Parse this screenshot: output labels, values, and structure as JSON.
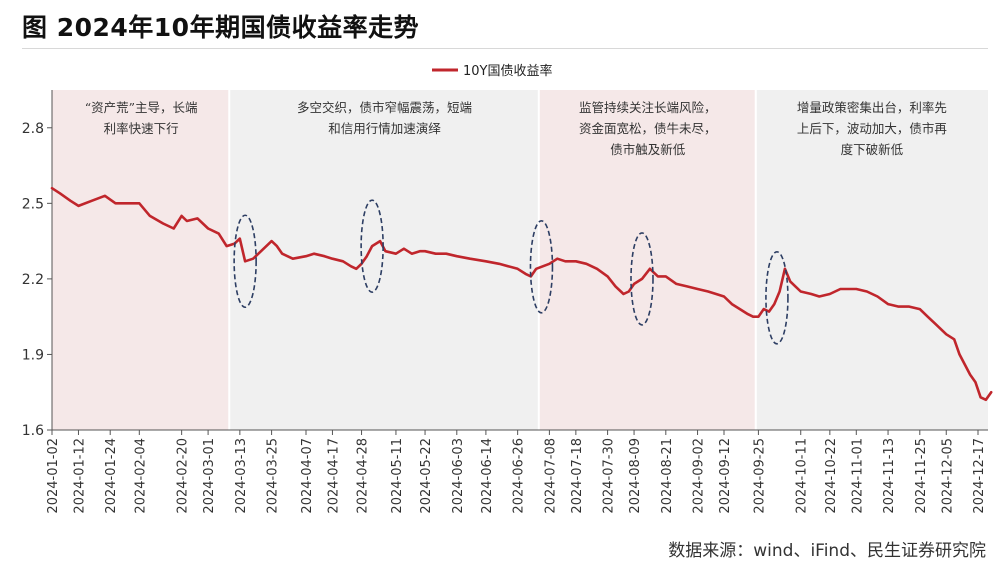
{
  "figure": {
    "title": "图  2024年10年期国债收益率走势",
    "source": "数据来源：wind、iFind、民生证券研究院"
  },
  "chart_data": {
    "type": "line",
    "legend": "10Y国债收益率",
    "legend_position": "top-center",
    "ylim": [
      1.6,
      2.95
    ],
    "yticks": [
      "1.6",
      "1.9",
      "2.2",
      "2.5",
      "2.8"
    ],
    "xticks": [
      "2024-01-02",
      "2024-01-12",
      "2024-01-24",
      "2024-02-04",
      "2024-02-20",
      "2024-03-01",
      "2024-03-13",
      "2024-03-25",
      "2024-04-07",
      "2024-04-17",
      "2024-04-28",
      "2024-05-11",
      "2024-05-22",
      "2024-06-03",
      "2024-06-14",
      "2024-06-26",
      "2024-07-08",
      "2024-07-18",
      "2024-07-30",
      "2024-08-09",
      "2024-08-21",
      "2024-09-02",
      "2024-09-12",
      "2024-09-25",
      "2024-10-11",
      "2024-10-22",
      "2024-11-01",
      "2024-11-13",
      "2024-11-25",
      "2024-12-05",
      "2024-12-17"
    ],
    "series": [
      {
        "name": "10Y国债收益率",
        "color": "#c0262c",
        "points": [
          [
            "2024-01-02",
            2.56
          ],
          [
            "2024-01-05",
            2.54
          ],
          [
            "2024-01-09",
            2.51
          ],
          [
            "2024-01-12",
            2.49
          ],
          [
            "2024-01-17",
            2.51
          ],
          [
            "2024-01-22",
            2.53
          ],
          [
            "2024-01-26",
            2.5
          ],
          [
            "2024-01-31",
            2.5
          ],
          [
            "2024-02-04",
            2.5
          ],
          [
            "2024-02-08",
            2.45
          ],
          [
            "2024-02-13",
            2.42
          ],
          [
            "2024-02-17",
            2.4
          ],
          [
            "2024-02-20",
            2.45
          ],
          [
            "2024-02-22",
            2.43
          ],
          [
            "2024-02-26",
            2.44
          ],
          [
            "2024-03-01",
            2.4
          ],
          [
            "2024-03-05",
            2.38
          ],
          [
            "2024-03-08",
            2.33
          ],
          [
            "2024-03-11",
            2.34
          ],
          [
            "2024-03-13",
            2.36
          ],
          [
            "2024-03-15",
            2.27
          ],
          [
            "2024-03-18",
            2.28
          ],
          [
            "2024-03-21",
            2.31
          ],
          [
            "2024-03-25",
            2.35
          ],
          [
            "2024-03-27",
            2.33
          ],
          [
            "2024-03-29",
            2.3
          ],
          [
            "2024-04-02",
            2.28
          ],
          [
            "2024-04-07",
            2.29
          ],
          [
            "2024-04-10",
            2.3
          ],
          [
            "2024-04-14",
            2.29
          ],
          [
            "2024-04-17",
            2.28
          ],
          [
            "2024-04-21",
            2.27
          ],
          [
            "2024-04-24",
            2.25
          ],
          [
            "2024-04-26",
            2.24
          ],
          [
            "2024-04-28",
            2.26
          ],
          [
            "2024-04-30",
            2.29
          ],
          [
            "2024-05-02",
            2.33
          ],
          [
            "2024-05-05",
            2.35
          ],
          [
            "2024-05-07",
            2.31
          ],
          [
            "2024-05-11",
            2.3
          ],
          [
            "2024-05-14",
            2.32
          ],
          [
            "2024-05-17",
            2.3
          ],
          [
            "2024-05-20",
            2.31
          ],
          [
            "2024-05-22",
            2.31
          ],
          [
            "2024-05-26",
            2.3
          ],
          [
            "2024-05-30",
            2.3
          ],
          [
            "2024-06-03",
            2.29
          ],
          [
            "2024-06-08",
            2.28
          ],
          [
            "2024-06-14",
            2.27
          ],
          [
            "2024-06-19",
            2.26
          ],
          [
            "2024-06-26",
            2.24
          ],
          [
            "2024-06-29",
            2.22
          ],
          [
            "2024-07-01",
            2.21
          ],
          [
            "2024-07-03",
            2.24
          ],
          [
            "2024-07-08",
            2.26
          ],
          [
            "2024-07-11",
            2.28
          ],
          [
            "2024-07-14",
            2.27
          ],
          [
            "2024-07-18",
            2.27
          ],
          [
            "2024-07-22",
            2.26
          ],
          [
            "2024-07-26",
            2.24
          ],
          [
            "2024-07-30",
            2.21
          ],
          [
            "2024-08-02",
            2.17
          ],
          [
            "2024-08-05",
            2.14
          ],
          [
            "2024-08-07",
            2.15
          ],
          [
            "2024-08-09",
            2.18
          ],
          [
            "2024-08-12",
            2.2
          ],
          [
            "2024-08-15",
            2.24
          ],
          [
            "2024-08-18",
            2.21
          ],
          [
            "2024-08-21",
            2.21
          ],
          [
            "2024-08-25",
            2.18
          ],
          [
            "2024-08-29",
            2.17
          ],
          [
            "2024-09-02",
            2.16
          ],
          [
            "2024-09-06",
            2.15
          ],
          [
            "2024-09-09",
            2.14
          ],
          [
            "2024-09-12",
            2.13
          ],
          [
            "2024-09-15",
            2.1
          ],
          [
            "2024-09-18",
            2.08
          ],
          [
            "2024-09-21",
            2.06
          ],
          [
            "2024-09-23",
            2.05
          ],
          [
            "2024-09-25",
            2.05
          ],
          [
            "2024-09-27",
            2.08
          ],
          [
            "2024-09-29",
            2.07
          ],
          [
            "2024-10-01",
            2.1
          ],
          [
            "2024-10-03",
            2.15
          ],
          [
            "2024-10-05",
            2.24
          ],
          [
            "2024-10-07",
            2.19
          ],
          [
            "2024-10-09",
            2.17
          ],
          [
            "2024-10-11",
            2.15
          ],
          [
            "2024-10-15",
            2.14
          ],
          [
            "2024-10-18",
            2.13
          ],
          [
            "2024-10-22",
            2.14
          ],
          [
            "2024-10-26",
            2.16
          ],
          [
            "2024-11-01",
            2.16
          ],
          [
            "2024-11-05",
            2.15
          ],
          [
            "2024-11-09",
            2.13
          ],
          [
            "2024-11-13",
            2.1
          ],
          [
            "2024-11-17",
            2.09
          ],
          [
            "2024-11-21",
            2.09
          ],
          [
            "2024-11-25",
            2.08
          ],
          [
            "2024-11-28",
            2.05
          ],
          [
            "2024-12-01",
            2.02
          ],
          [
            "2024-12-05",
            1.98
          ],
          [
            "2024-12-08",
            1.96
          ],
          [
            "2024-12-10",
            1.9
          ],
          [
            "2024-12-12",
            1.86
          ],
          [
            "2024-12-14",
            1.82
          ],
          [
            "2024-12-16",
            1.79
          ],
          [
            "2024-12-18",
            1.73
          ],
          [
            "2024-12-20",
            1.72
          ],
          [
            "2024-12-22",
            1.75
          ]
        ]
      }
    ],
    "phases": [
      {
        "start": "2024-01-02",
        "end": "2024-03-09",
        "shade": "#f5e8e8",
        "annotation": [
          "“资产荒”主导，长端",
          "利率快速下行"
        ]
      },
      {
        "start": "2024-03-09",
        "end": "2024-07-04",
        "shade": "#f0f0f0",
        "annotation": [
          "多空交织，债市窄幅震荡，短端",
          "和信用行情加速演绎"
        ]
      },
      {
        "start": "2024-07-04",
        "end": "2024-09-24",
        "shade": "#f5e8e8",
        "annotation": [
          "监管持续关注长端风险，",
          "资金面宽松，债牛未尽，",
          "债市触及新低"
        ]
      },
      {
        "start": "2024-09-24",
        "end": "2024-12-22",
        "shade": "#f0f0f0",
        "annotation": [
          "增量政策密集出台，利率先",
          "上后下，波动加大，债市再",
          "度下破新低"
        ]
      }
    ],
    "highlight_dates": [
      "2024-03-15",
      "2024-05-02",
      "2024-07-05",
      "2024-08-12",
      "2024-10-02"
    ]
  }
}
